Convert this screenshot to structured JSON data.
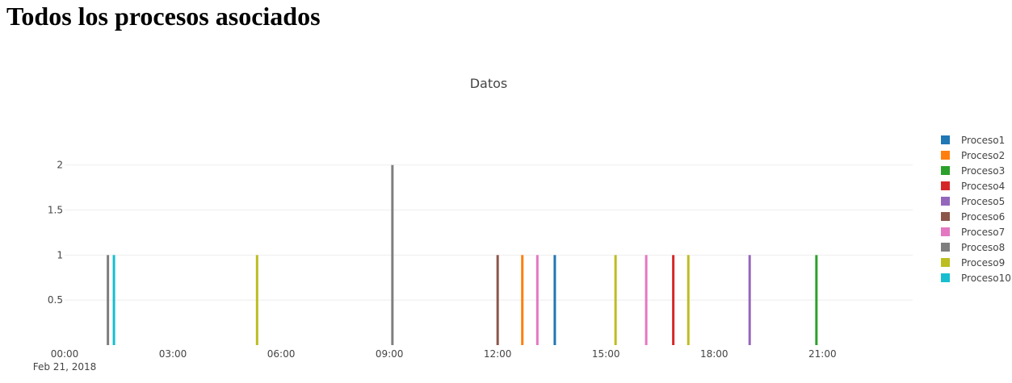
{
  "page": {
    "heading": "Todos los procesos asociados"
  },
  "chart_data": {
    "type": "bar",
    "title": "Datos",
    "xlabel": "",
    "ylabel": "",
    "x_axis": {
      "type": "date",
      "range": [
        "2018-02-21 00:00",
        "2018-02-21 23:30"
      ],
      "ticks": [
        {
          "value": "2018-02-21 00:00",
          "label": "00:00",
          "sublabel": "Feb 21, 2018"
        },
        {
          "value": "2018-02-21 03:00",
          "label": "03:00"
        },
        {
          "value": "2018-02-21 06:00",
          "label": "06:00"
        },
        {
          "value": "2018-02-21 09:00",
          "label": "09:00"
        },
        {
          "value": "2018-02-21 12:00",
          "label": "12:00"
        },
        {
          "value": "2018-02-21 15:00",
          "label": "15:00"
        },
        {
          "value": "2018-02-21 18:00",
          "label": "18:00"
        },
        {
          "value": "2018-02-21 21:00",
          "label": "21:00"
        }
      ]
    },
    "y_axis": {
      "range": [
        0,
        2.4
      ],
      "ticks": [
        0.5,
        1,
        1.5,
        2
      ],
      "tick_labels": [
        "0.5",
        "1",
        "1.5",
        "2"
      ],
      "grid": true
    },
    "legend": {
      "position": "right"
    },
    "series": [
      {
        "name": "Proceso1",
        "color": "#1f77b4",
        "points": [
          {
            "x": "2018-02-21 13:35",
            "y": 1
          }
        ]
      },
      {
        "name": "Proceso2",
        "color": "#ff7f0e",
        "points": [
          {
            "x": "2018-02-21 12:41",
            "y": 1
          }
        ]
      },
      {
        "name": "Proceso3",
        "color": "#2ca02c",
        "points": [
          {
            "x": "2018-02-21 20:50",
            "y": 1
          }
        ]
      },
      {
        "name": "Proceso4",
        "color": "#d62728",
        "points": [
          {
            "x": "2018-02-21 16:52",
            "y": 1
          }
        ]
      },
      {
        "name": "Proceso5",
        "color": "#9467bd",
        "points": [
          {
            "x": "2018-02-21 18:59",
            "y": 1
          }
        ]
      },
      {
        "name": "Proceso6",
        "color": "#8c564b",
        "points": [
          {
            "x": "2018-02-21 12:00",
            "y": 1
          }
        ]
      },
      {
        "name": "Proceso7",
        "color": "#e377c2",
        "points": [
          {
            "x": "2018-02-21 13:06",
            "y": 1
          },
          {
            "x": "2018-02-21 16:07",
            "y": 1
          }
        ]
      },
      {
        "name": "Proceso8",
        "color": "#7f7f7f",
        "points": [
          {
            "x": "2018-02-21 01:12",
            "y": 1
          },
          {
            "x": "2018-02-21 09:05",
            "y": 2
          }
        ]
      },
      {
        "name": "Proceso9",
        "color": "#bcbd22",
        "points": [
          {
            "x": "2018-02-21 05:20",
            "y": 1
          },
          {
            "x": "2018-02-21 15:16",
            "y": 1
          },
          {
            "x": "2018-02-21 17:17",
            "y": 1
          }
        ]
      },
      {
        "name": "Proceso10",
        "color": "#17becf",
        "points": [
          {
            "x": "2018-02-21 01:22",
            "y": 1
          }
        ]
      }
    ]
  }
}
